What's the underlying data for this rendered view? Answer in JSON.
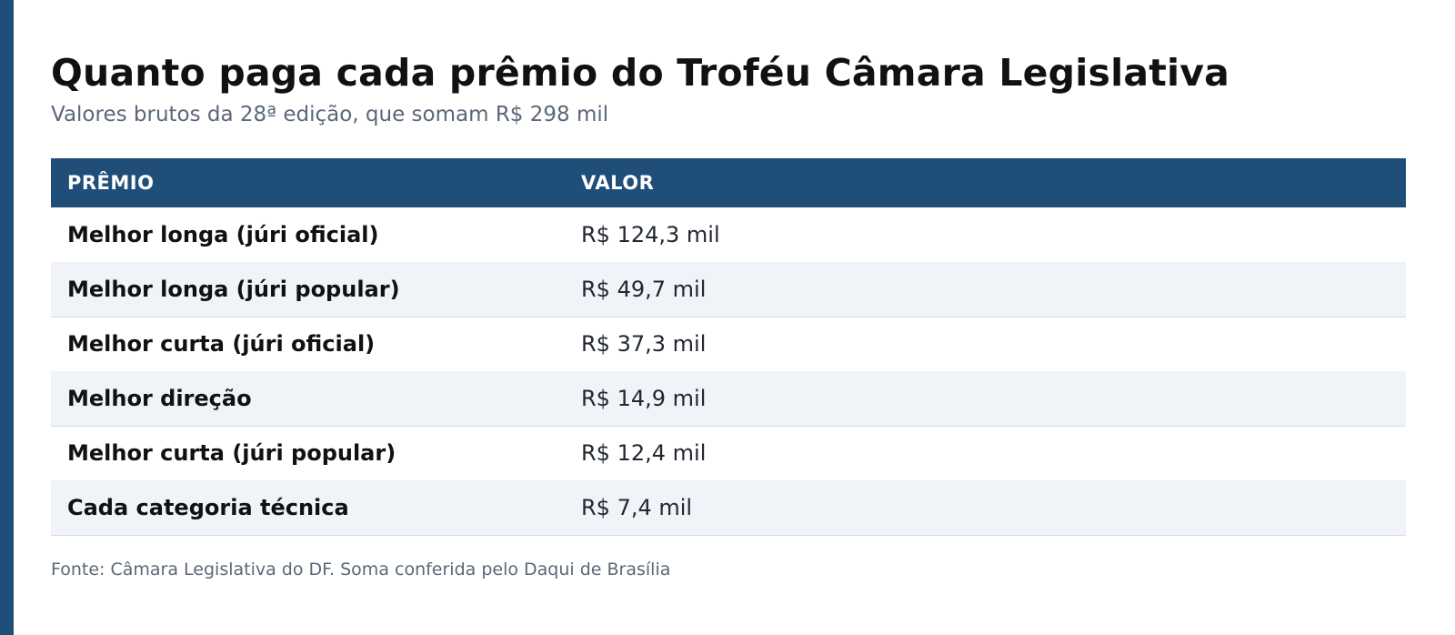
{
  "colors": {
    "accent": "#1f4e79",
    "stripe": "#f0f4f8",
    "muted_text": "#5b6778"
  },
  "header": {
    "title": "Quanto paga cada prêmio do Troféu Câmara Legislativa",
    "subtitle": "Valores brutos da 28ª edição, que somam R$ 298 mil"
  },
  "table": {
    "columns": [
      "PRÊMIO",
      "VALOR"
    ],
    "rows": [
      {
        "premio": "Melhor longa (júri oficial)",
        "valor": "R$ 124,3 mil"
      },
      {
        "premio": "Melhor longa (júri popular)",
        "valor": "R$ 49,7 mil"
      },
      {
        "premio": "Melhor curta (júri oficial)",
        "valor": "R$ 37,3 mil"
      },
      {
        "premio": "Melhor direção",
        "valor": "R$ 14,9 mil"
      },
      {
        "premio": "Melhor curta (júri popular)",
        "valor": "R$ 12,4 mil"
      },
      {
        "premio": "Cada categoria técnica",
        "valor": "R$ 7,4 mil"
      }
    ]
  },
  "footer": {
    "source": "Fonte: Câmara Legislativa do DF. Soma conferida pelo Daqui de Brasília"
  }
}
